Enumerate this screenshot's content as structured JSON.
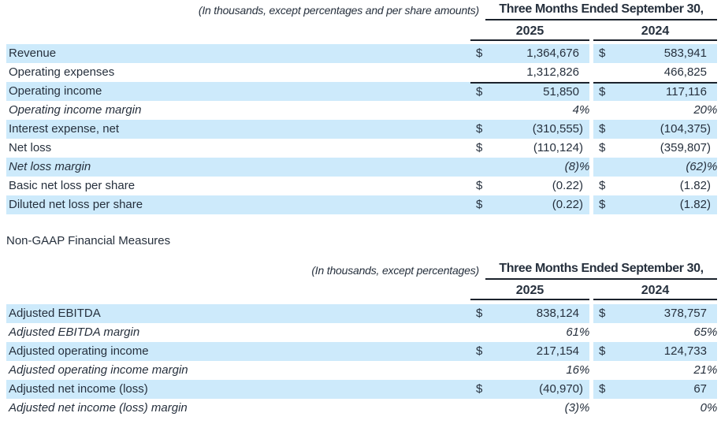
{
  "currency_symbol": "$",
  "section_heading": "Non-GAAP Financial Measures",
  "colors": {
    "row_highlight": "#cdeafb",
    "text": "#26303d",
    "rule": "#1b222c"
  },
  "table1": {
    "note": "(In thousands, except percentages and per share amounts)",
    "period_header": "Three Months Ended September 30,",
    "years": [
      "2025",
      "2024"
    ],
    "rows": [
      {
        "label": "Revenue",
        "shaded": true,
        "italic": false,
        "dollar": true,
        "rule_top": false,
        "v2025": "1,364,676",
        "v2024": "583,941"
      },
      {
        "label": "Operating expenses",
        "shaded": false,
        "italic": false,
        "dollar": false,
        "rule_top": false,
        "v2025": "1,312,826",
        "v2024": "466,825"
      },
      {
        "label": "Operating income",
        "shaded": true,
        "italic": false,
        "dollar": true,
        "rule_top": true,
        "v2025": "51,850",
        "v2024": "117,116"
      },
      {
        "label": "Operating income margin",
        "shaded": false,
        "italic": true,
        "dollar": false,
        "rule_top": false,
        "v2025": "4%",
        "v2024": "20%"
      },
      {
        "label": "Interest expense, net",
        "shaded": true,
        "italic": false,
        "dollar": true,
        "rule_top": false,
        "v2025": "(310,555)",
        "v2024": "(104,375)"
      },
      {
        "label": "Net loss",
        "shaded": false,
        "italic": false,
        "dollar": true,
        "rule_top": false,
        "v2025": "(110,124)",
        "v2024": "(359,807)"
      },
      {
        "label": "Net loss margin",
        "shaded": true,
        "italic": true,
        "dollar": false,
        "rule_top": false,
        "v2025": "(8)%",
        "v2024": "(62)%"
      },
      {
        "label": "Basic net loss per share",
        "shaded": false,
        "italic": false,
        "dollar": true,
        "rule_top": false,
        "v2025": "(0.22)",
        "v2024": "(1.82)"
      },
      {
        "label": "Diluted net loss per share",
        "shaded": true,
        "italic": false,
        "dollar": true,
        "rule_top": false,
        "v2025": "(0.22)",
        "v2024": "(1.82)"
      }
    ]
  },
  "table2": {
    "note": "(In thousands, except percentages)",
    "period_header": "Three Months Ended September 30,",
    "years": [
      "2025",
      "2024"
    ],
    "rows": [
      {
        "label": "Adjusted EBITDA",
        "shaded": true,
        "italic": false,
        "dollar": true,
        "rule_top": false,
        "v2025": "838,124",
        "v2024": "378,757"
      },
      {
        "label": "Adjusted EBITDA margin",
        "shaded": false,
        "italic": true,
        "dollar": false,
        "rule_top": false,
        "v2025": "61%",
        "v2024": "65%"
      },
      {
        "label": "Adjusted operating income",
        "shaded": true,
        "italic": false,
        "dollar": true,
        "rule_top": false,
        "v2025": "217,154",
        "v2024": "124,733"
      },
      {
        "label": "Adjusted operating income margin",
        "shaded": false,
        "italic": true,
        "dollar": false,
        "rule_top": false,
        "v2025": "16%",
        "v2024": "21%"
      },
      {
        "label": "Adjusted net income (loss)",
        "shaded": true,
        "italic": false,
        "dollar": true,
        "rule_top": false,
        "v2025": "(40,970)",
        "v2024": "67"
      },
      {
        "label": "Adjusted net income (loss) margin",
        "shaded": false,
        "italic": true,
        "dollar": false,
        "rule_top": false,
        "v2025": "(3)%",
        "v2024": "0%"
      }
    ]
  }
}
